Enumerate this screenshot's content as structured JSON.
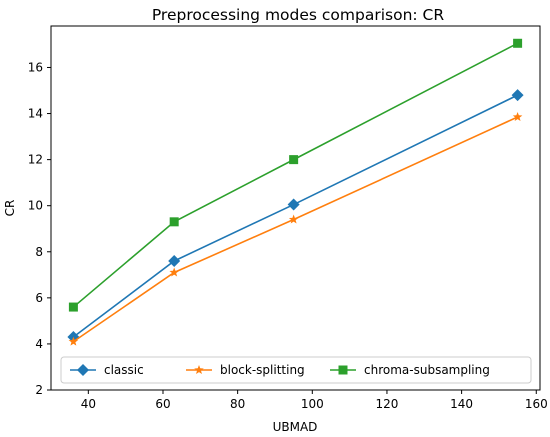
{
  "chart_data": {
    "type": "line",
    "title": "Preprocessing modes comparison: CR",
    "xlabel": "UBMAD",
    "ylabel": "CR",
    "x": [
      36,
      63,
      95,
      155
    ],
    "xlim": [
      30,
      161
    ],
    "ylim": [
      2,
      17.8
    ],
    "xticks": [
      40,
      60,
      80,
      100,
      120,
      140,
      160
    ],
    "yticks": [
      2,
      4,
      6,
      8,
      10,
      12,
      14,
      16
    ],
    "grid": false,
    "legend": {
      "position": "bottom-center",
      "columns": 3
    },
    "series": [
      {
        "name": "classic",
        "values": [
          4.3,
          7.6,
          10.05,
          14.8
        ],
        "color": "#1f77b4",
        "marker": "diamond"
      },
      {
        "name": "block-splitting",
        "values": [
          4.1,
          7.1,
          9.4,
          13.85
        ],
        "color": "#ff7f0e",
        "marker": "star"
      },
      {
        "name": "chroma-subsampling",
        "values": [
          5.6,
          9.3,
          12.0,
          17.05
        ],
        "color": "#2ca02c",
        "marker": "square"
      }
    ]
  }
}
